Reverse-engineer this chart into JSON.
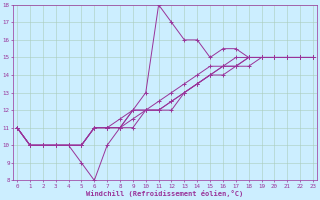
{
  "xlabel": "Windchill (Refroidissement éolien,°C)",
  "background_color": "#cceeff",
  "grid_color": "#aaccbb",
  "line_color": "#993399",
  "xmin": 0,
  "xmax": 23,
  "ymin": 8,
  "ymax": 18,
  "lines": [
    [
      11,
      10,
      10,
      10,
      10,
      9,
      8,
      10,
      11,
      12,
      13,
      18,
      17,
      16,
      16,
      15,
      15.5,
      15.5,
      15,
      15,
      15,
      15,
      15,
      15
    ],
    [
      11,
      10,
      10,
      10,
      10,
      10,
      11,
      11,
      11,
      11,
      12,
      12,
      12,
      13,
      13.5,
      14,
      14.5,
      14.5,
      15,
      15,
      15,
      15,
      15,
      15
    ],
    [
      11,
      10,
      10,
      10,
      10,
      10,
      11,
      11,
      11,
      11.5,
      12,
      12,
      12.5,
      13,
      13.5,
      14,
      14,
      14.5,
      14.5,
      15,
      15,
      15,
      15,
      15
    ],
    [
      11,
      10,
      10,
      10,
      10,
      10,
      11,
      11,
      11,
      12,
      12,
      12,
      12.5,
      13,
      13.5,
      14,
      14.5,
      14.5,
      15,
      15,
      15,
      15,
      15,
      15
    ],
    [
      11,
      10,
      10,
      10,
      10,
      10,
      11,
      11,
      11.5,
      12,
      12,
      12.5,
      13,
      13.5,
      14,
      14.5,
      14.5,
      15,
      15,
      15,
      15,
      15,
      15,
      15
    ]
  ]
}
